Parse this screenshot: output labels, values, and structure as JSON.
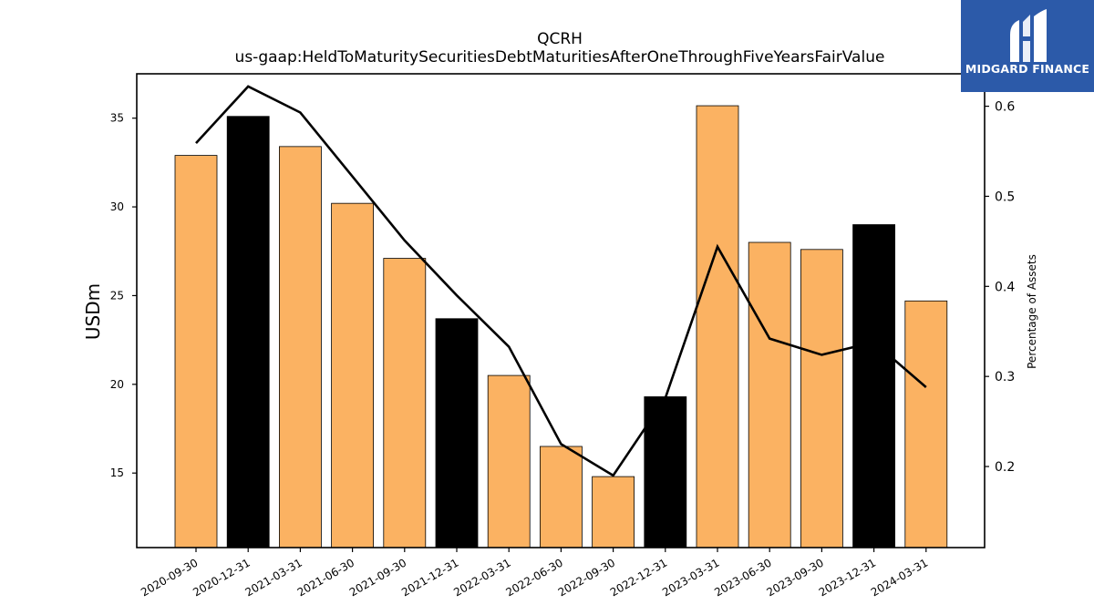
{
  "chart_data": {
    "type": "bar",
    "title": "QCRH",
    "subtitle": "us-gaap:HeldToMaturitySecuritiesDebtMaturitiesAfterOneThroughFiveYearsFairValue",
    "ylabel": "USDm",
    "ylabel_right": "Percentage of Assets",
    "ylim": [
      10.8,
      37.5
    ],
    "ylim_right": [
      0.11,
      0.636
    ],
    "yticks": [
      15,
      20,
      25,
      30,
      35
    ],
    "yticks_right": [
      0.2,
      0.3,
      0.4,
      0.5,
      0.6
    ],
    "categories": [
      "2020-09-30",
      "2020-12-31",
      "2021-03-31",
      "2021-06-30",
      "2021-09-30",
      "2021-12-31",
      "2022-03-31",
      "2022-06-30",
      "2022-09-30",
      "2022-12-31",
      "2023-03-31",
      "2023-06-30",
      "2023-09-30",
      "2023-12-31",
      "2024-03-31"
    ],
    "series": [
      {
        "type": "bar",
        "values": [
          32.9,
          35.1,
          33.4,
          30.2,
          27.1,
          23.7,
          20.5,
          16.5,
          14.8,
          19.3,
          35.7,
          28.0,
          27.6,
          29.0,
          24.7
        ],
        "colors": [
          "#fbb262",
          "#000000",
          "#fbb262",
          "#fbb262",
          "#fbb262",
          "#000000",
          "#fbb262",
          "#fbb262",
          "#fbb262",
          "#000000",
          "#fbb262",
          "#fbb262",
          "#fbb262",
          "#000000",
          "#fbb262"
        ]
      },
      {
        "type": "line",
        "axis": "right",
        "color": "#000000",
        "values": [
          0.559,
          0.622,
          0.593,
          0.522,
          0.451,
          0.39,
          0.333,
          0.225,
          0.19,
          0.276,
          0.444,
          0.342,
          0.324,
          0.338,
          0.288
        ]
      }
    ],
    "grid": false
  },
  "logo": {
    "text": "MIDGARD FINANCE",
    "background": "#2c5aa9"
  }
}
